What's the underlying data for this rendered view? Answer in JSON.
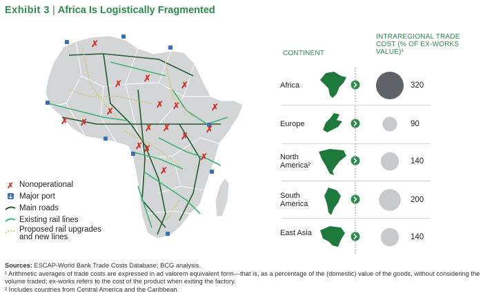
{
  "title": {
    "exhibit": "Exhibit 3",
    "separator": "|",
    "text": "Africa Is Logistically Fragmented"
  },
  "legend": [
    {
      "key": "nonoperational",
      "label": "Nonoperational",
      "color": "#d0332b"
    },
    {
      "key": "major-port",
      "label": "Major port",
      "color": "#3a6fb5"
    },
    {
      "key": "main-roads",
      "label": "Main roads",
      "color": "#1f5a2e"
    },
    {
      "key": "existing-rail",
      "label": "Existing rail lines",
      "color": "#3cb371"
    },
    {
      "key": "proposed-rail",
      "label": "Proposed rail upgrades and new lines",
      "color": "#c9c64a"
    }
  ],
  "table": {
    "continent_header": "CONTINENT",
    "cost_header": "INTRAREGIONAL TRADE COST (% OF EX-WORKS VALUE)¹",
    "rows": [
      {
        "name": "Africa",
        "value": "320",
        "num": 320,
        "bubble_color": "#5f6266"
      },
      {
        "name": "Europe",
        "value": "90",
        "num": 90,
        "bubble_color": "#c8c9cb"
      },
      {
        "name": "North America²",
        "value": "140",
        "num": 140,
        "bubble_color": "#c8c9cb"
      },
      {
        "name": "South America",
        "value": "200",
        "num": 200,
        "bubble_color": "#c8c9cb"
      },
      {
        "name": "East Asia",
        "value": "140",
        "num": 140,
        "bubble_color": "#c8c9cb"
      }
    ]
  },
  "footer": {
    "sources_label": "Sources:",
    "sources_text": "ESCAP-World Bank Trade Costs Database; BCG analysis.",
    "note1": "¹ Arithmetic averages of trade costs are expressed in ad valorem equivalent form—that is, as a percentage of the (domestic) value of the goods, without considering the volume traded; ex-works refers to the cost of the product when exiting the factory.",
    "note2": "² Includes countries from Central America and the Caribbean."
  },
  "colors": {
    "accent": "#2e8b4a",
    "map_fill": "#d4d5d7",
    "map_stroke": "#ffffff"
  }
}
